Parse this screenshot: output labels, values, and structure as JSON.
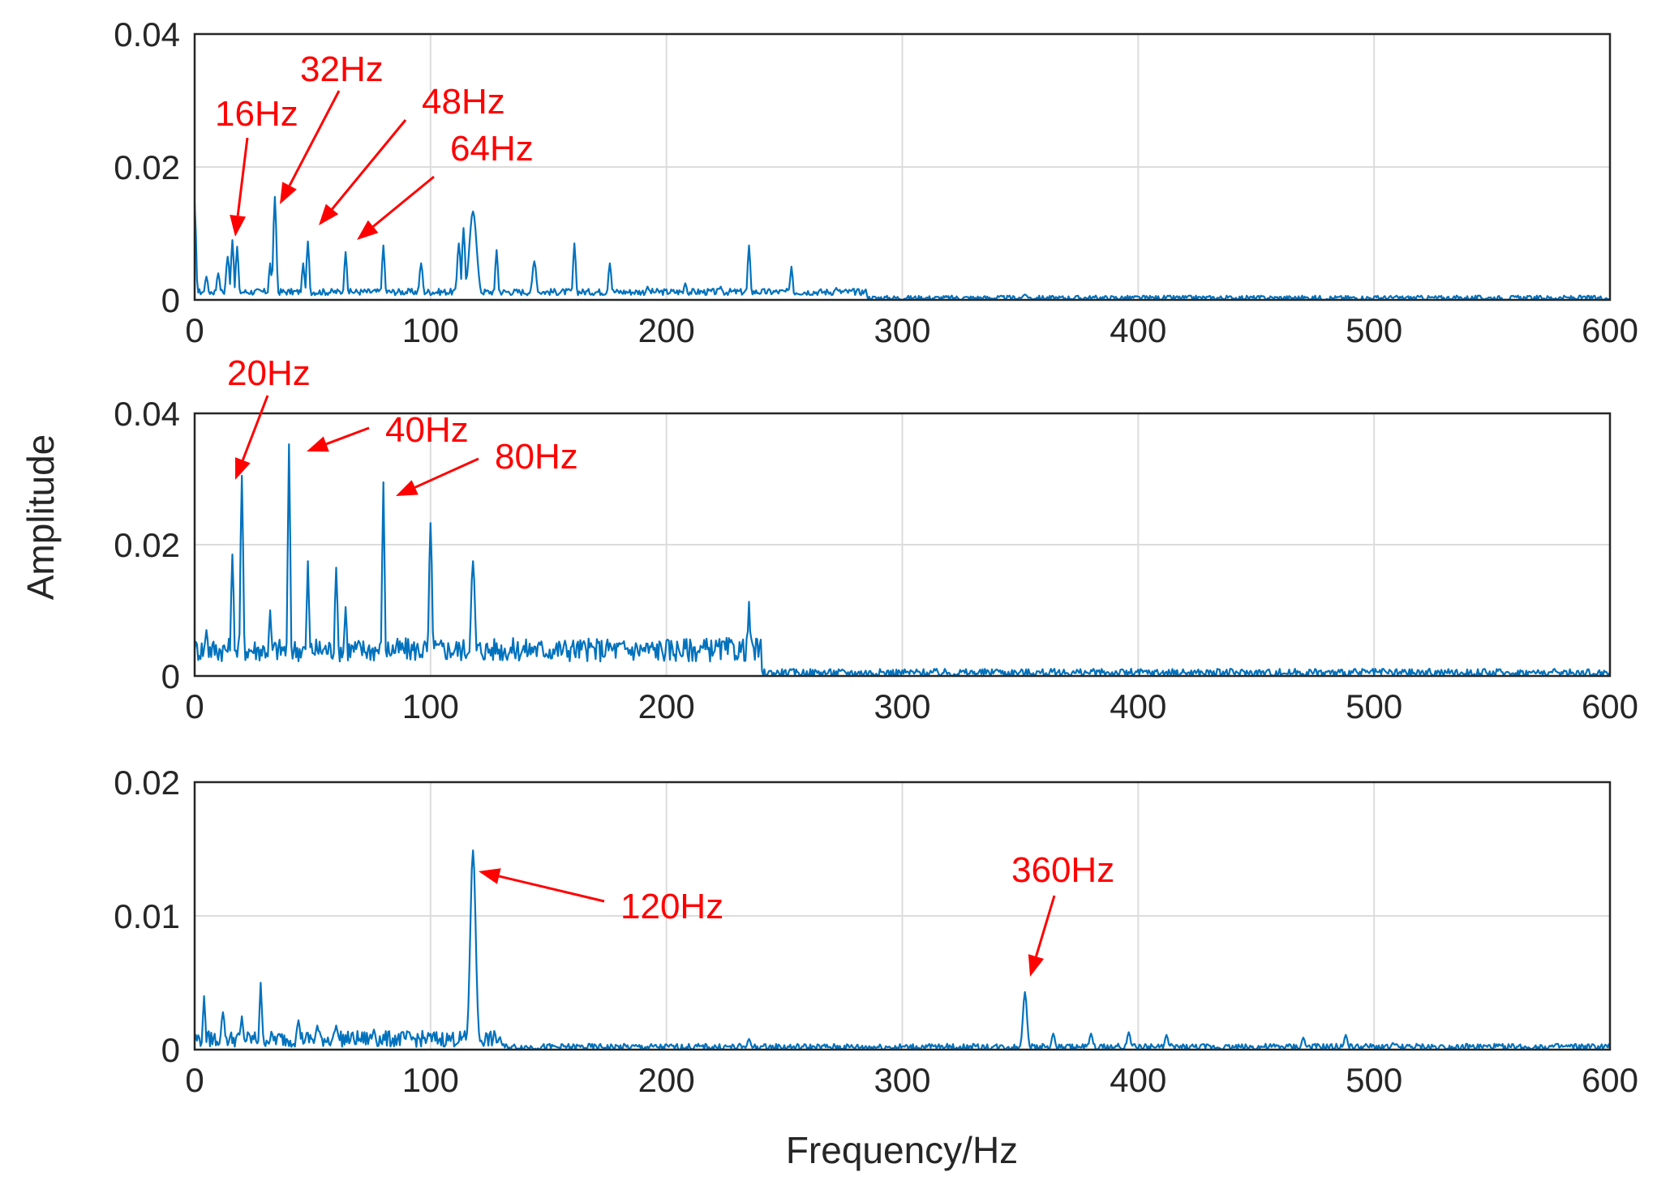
{
  "chart_data": [
    {
      "type": "line",
      "name": "spectrum-1",
      "xlabel": "",
      "ylabel": "",
      "xlim": [
        0,
        600
      ],
      "ylim": [
        0,
        0.04
      ],
      "grid": true,
      "xticks": [
        0,
        100,
        200,
        300,
        400,
        500,
        600
      ],
      "xtick_labels": [
        "0",
        "100",
        "200",
        "300",
        "400",
        "500",
        "600"
      ],
      "yticks": [
        0,
        0.02,
        0.04
      ],
      "ytick_labels": [
        "0",
        "0.02",
        "0.04"
      ],
      "series": [
        {
          "name": "amplitude",
          "color": "#0072bd",
          "floor": 0.0012,
          "noise": 0.0005,
          "peaks": [
            [
              0,
              0.0145,
              0.8
            ],
            [
              5,
              0.0035,
              1
            ],
            [
              10,
              0.004,
              1
            ],
            [
              14,
              0.0065,
              1
            ],
            [
              16,
              0.009,
              0.8
            ],
            [
              18,
              0.008,
              0.8
            ],
            [
              32,
              0.0055,
              0.8
            ],
            [
              34,
              0.0155,
              0.9
            ],
            [
              46,
              0.0055,
              0.8
            ],
            [
              48,
              0.0088,
              0.8
            ],
            [
              64,
              0.0072,
              0.8
            ],
            [
              80,
              0.0082,
              0.8
            ],
            [
              96,
              0.0055,
              1
            ],
            [
              112,
              0.0085,
              1
            ],
            [
              114,
              0.0108,
              0.9
            ],
            [
              118,
              0.0133,
              2.2
            ],
            [
              128,
              0.0075,
              0.8
            ],
            [
              144,
              0.0058,
              1.2
            ],
            [
              161,
              0.0085,
              0.8
            ],
            [
              176,
              0.0055,
              0.9
            ],
            [
              192,
              0.002,
              1
            ],
            [
              208,
              0.0025,
              1
            ],
            [
              223,
              0.002,
              1
            ],
            [
              235,
              0.0082,
              0.8
            ],
            [
              253,
              0.005,
              0.8
            ],
            [
              272,
              0.0018,
              1.2
            ],
            [
              352,
              0.0008,
              1.5
            ]
          ],
          "tail_floor": 0.0003,
          "tail_start": 285
        }
      ],
      "annotations": [
        {
          "label": "16Hz",
          "x": 16
        },
        {
          "label": "32Hz",
          "x": 32
        },
        {
          "label": "48Hz",
          "x": 48
        },
        {
          "label": "64Hz",
          "x": 64
        }
      ]
    },
    {
      "type": "line",
      "name": "spectrum-2",
      "xlabel": "",
      "ylabel": "",
      "xlim": [
        0,
        600
      ],
      "ylim": [
        0,
        0.04
      ],
      "grid": true,
      "xticks": [
        0,
        100,
        200,
        300,
        400,
        500,
        600
      ],
      "xtick_labels": [
        "0",
        "100",
        "200",
        "300",
        "400",
        "500",
        "600"
      ],
      "yticks": [
        0,
        0.02,
        0.04
      ],
      "ytick_labels": [
        "0",
        "0.02",
        "0.04"
      ],
      "series": [
        {
          "name": "amplitude",
          "color": "#0072bd",
          "floor": 0.004,
          "noise": 0.0018,
          "peaks": [
            [
              0,
              0.004,
              1
            ],
            [
              5,
              0.007,
              1
            ],
            [
              16,
              0.0185,
              0.8
            ],
            [
              20,
              0.0305,
              0.8
            ],
            [
              32,
              0.01,
              0.8
            ],
            [
              40,
              0.0353,
              0.7
            ],
            [
              48,
              0.0175,
              0.7
            ],
            [
              60,
              0.0165,
              0.8
            ],
            [
              64,
              0.0105,
              0.8
            ],
            [
              80,
              0.0295,
              0.7
            ],
            [
              100,
              0.0233,
              0.9
            ],
            [
              118,
              0.0175,
              1.2
            ],
            [
              128,
              0.005,
              0.8
            ],
            [
              144,
              0.0045,
              1
            ],
            [
              160,
              0.0045,
              1
            ],
            [
              176,
              0.005,
              1
            ],
            [
              192,
              0.0035,
              1
            ],
            [
              208,
              0.004,
              1
            ],
            [
              220,
              0.0035,
              1
            ],
            [
              235,
              0.0113,
              0.7
            ],
            [
              340,
              0.001,
              1.5
            ]
          ],
          "tail_floor": 0.0005,
          "tail_start": 240
        }
      ],
      "annotations": [
        {
          "label": "20Hz",
          "x": 20
        },
        {
          "label": "40Hz",
          "x": 40
        },
        {
          "label": "80Hz",
          "x": 80
        }
      ]
    },
    {
      "type": "line",
      "name": "spectrum-3",
      "xlabel": "Frequency/Hz",
      "ylabel": "",
      "xlim": [
        0,
        600
      ],
      "ylim": [
        0,
        0.02
      ],
      "grid": true,
      "xticks": [
        0,
        100,
        200,
        300,
        400,
        500,
        600
      ],
      "xtick_labels": [
        "0",
        "100",
        "200",
        "300",
        "400",
        "500",
        "600"
      ],
      "yticks": [
        0,
        0.01,
        0.02
      ],
      "ytick_labels": [
        "0",
        "0.01",
        "0.02"
      ],
      "series": [
        {
          "name": "amplitude",
          "color": "#0072bd",
          "floor": 0.0008,
          "noise": 0.0006,
          "peaks": [
            [
              4,
              0.004,
              0.7
            ],
            [
              12,
              0.0028,
              1
            ],
            [
              20,
              0.0025,
              0.8
            ],
            [
              28,
              0.005,
              0.7
            ],
            [
              44,
              0.0022,
              1
            ],
            [
              52,
              0.0018,
              1
            ],
            [
              60,
              0.0018,
              1
            ],
            [
              76,
              0.0015,
              1
            ],
            [
              118,
              0.0149,
              1.6
            ],
            [
              235,
              0.0008,
              1
            ],
            [
              352,
              0.0043,
              1.2
            ],
            [
              364,
              0.0012,
              1
            ],
            [
              380,
              0.0012,
              1
            ],
            [
              396,
              0.0013,
              1
            ],
            [
              412,
              0.0011,
              1
            ],
            [
              470,
              0.0009,
              1
            ],
            [
              488,
              0.0011,
              1
            ],
            [
              508,
              0.0005,
              1
            ]
          ],
          "tail_floor": 0.0002,
          "tail_start": 130
        }
      ],
      "annotations": [
        {
          "label": "120Hz",
          "x": 120
        },
        {
          "label": "360Hz",
          "x": 360
        }
      ]
    }
  ],
  "shared": {
    "ylabel": "Amplitude",
    "xlabel": "Frequency/Hz",
    "line_color": "#0072bd",
    "annotation_color": "#ff0000"
  }
}
